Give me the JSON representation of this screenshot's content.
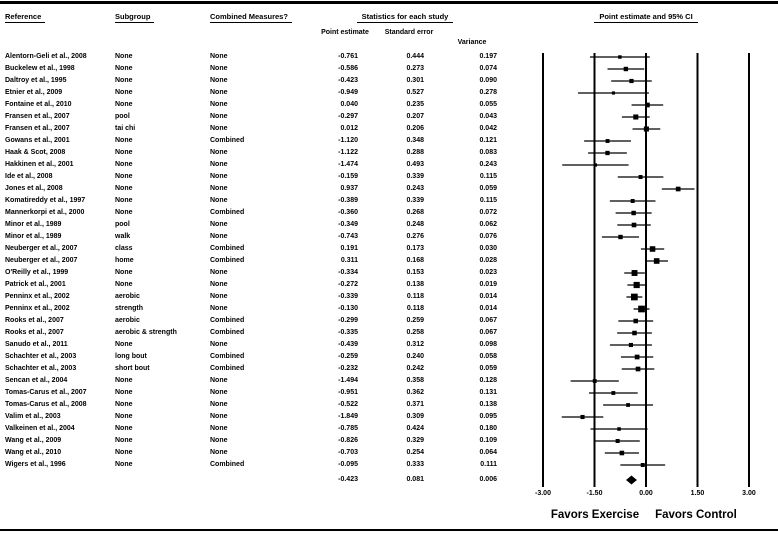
{
  "header": {
    "reference": "Reference",
    "subgroup": "Subgroup",
    "combined_measures": "Combined Measures?",
    "stats_group": "Statistics for each study",
    "plot_group": "Point estimate and 95% CI",
    "sub_point": "Point estimate",
    "sub_se": "Standard error",
    "sub_variance": "Variance"
  },
  "footer": {
    "favors_left": "Favors Exercise",
    "favors_right": "Favors Control"
  },
  "chart_data": {
    "type": "forest",
    "title": "Point estimate and 95% CI",
    "xlim": [
      -3,
      3
    ],
    "x_ticks": [
      -3,
      -1.5,
      0,
      1.5,
      3
    ],
    "x_tick_labels": [
      "-3.00",
      "-1.50",
      "0.00",
      "1.50",
      "3.00"
    ],
    "ci_level": 0.95,
    "grid": "vertical line at every x tick",
    "marker": "square sized by weight, whiskers = 95% CI, summary = diamond",
    "studies": [
      {
        "reference": "Alentorn-Geli et al., 2008",
        "subgroup": "None",
        "combined": "None",
        "point": -0.761,
        "se": 0.444,
        "variance": 0.197
      },
      {
        "reference": "Buckelew et al., 1998",
        "subgroup": "None",
        "combined": "None",
        "point": -0.586,
        "se": 0.273,
        "variance": 0.074
      },
      {
        "reference": "Daltroy et al., 1995",
        "subgroup": "None",
        "combined": "None",
        "point": -0.423,
        "se": 0.301,
        "variance": 0.09
      },
      {
        "reference": "Etnier et al., 2009",
        "subgroup": "None",
        "combined": "None",
        "point": -0.949,
        "se": 0.527,
        "variance": 0.278
      },
      {
        "reference": "Fontaine et al., 2010",
        "subgroup": "None",
        "combined": "None",
        "point": 0.04,
        "se": 0.235,
        "variance": 0.055
      },
      {
        "reference": "Fransen et al., 2007",
        "subgroup": "pool",
        "combined": "None",
        "point": -0.297,
        "se": 0.207,
        "variance": 0.043
      },
      {
        "reference": "Fransen et al., 2007",
        "subgroup": "tai chi",
        "combined": "None",
        "point": 0.012,
        "se": 0.206,
        "variance": 0.042
      },
      {
        "reference": "Gowans et al., 2001",
        "subgroup": "None",
        "combined": "Combined",
        "point": -1.12,
        "se": 0.348,
        "variance": 0.121
      },
      {
        "reference": "Haak & Scot, 2008",
        "subgroup": "None",
        "combined": "None",
        "point": -1.122,
        "se": 0.288,
        "variance": 0.083
      },
      {
        "reference": "Hakkinen et al., 2001",
        "subgroup": "None",
        "combined": "None",
        "point": -1.474,
        "se": 0.493,
        "variance": 0.243
      },
      {
        "reference": "Ide et al., 2008",
        "subgroup": "None",
        "combined": "None",
        "point": -0.159,
        "se": 0.339,
        "variance": 0.115
      },
      {
        "reference": "Jones et al., 2008",
        "subgroup": "None",
        "combined": "None",
        "point": 0.937,
        "se": 0.243,
        "variance": 0.059
      },
      {
        "reference": "Komatireddy et al., 1997",
        "subgroup": "None",
        "combined": "None",
        "point": -0.389,
        "se": 0.339,
        "variance": 0.115
      },
      {
        "reference": "Mannerkorpi et al., 2000",
        "subgroup": "None",
        "combined": "Combined",
        "point": -0.36,
        "se": 0.268,
        "variance": 0.072
      },
      {
        "reference": "Minor et al., 1989",
        "subgroup": "pool",
        "combined": "None",
        "point": -0.349,
        "se": 0.248,
        "variance": 0.062
      },
      {
        "reference": "Minor et al., 1989",
        "subgroup": "walk",
        "combined": "None",
        "point": -0.743,
        "se": 0.276,
        "variance": 0.076
      },
      {
        "reference": "Neuberger et al., 2007",
        "subgroup": "class",
        "combined": "Combined",
        "point": 0.191,
        "se": 0.173,
        "variance": 0.03
      },
      {
        "reference": "Neuberger et al., 2007",
        "subgroup": "home",
        "combined": "Combined",
        "point": 0.311,
        "se": 0.168,
        "variance": 0.028
      },
      {
        "reference": "O'Reilly et al., 1999",
        "subgroup": "None",
        "combined": "None",
        "point": -0.334,
        "se": 0.153,
        "variance": 0.023
      },
      {
        "reference": "Patrick et al., 2001",
        "subgroup": "None",
        "combined": "None",
        "point": -0.272,
        "se": 0.138,
        "variance": 0.019
      },
      {
        "reference": "Penninx et al., 2002",
        "subgroup": "aerobic",
        "combined": "None",
        "point": -0.339,
        "se": 0.118,
        "variance": 0.014
      },
      {
        "reference": "Penninx et al., 2002",
        "subgroup": "strength",
        "combined": "None",
        "point": -0.13,
        "se": 0.118,
        "variance": 0.014
      },
      {
        "reference": "Rooks et al., 2007",
        "subgroup": "aerobic",
        "combined": "Combined",
        "point": -0.299,
        "se": 0.259,
        "variance": 0.067
      },
      {
        "reference": "Rooks et al., 2007",
        "subgroup": "aerobic & strength",
        "combined": "Combined",
        "point": -0.335,
        "se": 0.258,
        "variance": 0.067
      },
      {
        "reference": "Sanudo et al., 2011",
        "subgroup": "None",
        "combined": "None",
        "point": -0.439,
        "se": 0.312,
        "variance": 0.098
      },
      {
        "reference": "Schachter et al., 2003",
        "subgroup": "long bout",
        "combined": "Combined",
        "point": -0.259,
        "se": 0.24,
        "variance": 0.058
      },
      {
        "reference": "Schachter et al., 2003",
        "subgroup": "short bout",
        "combined": "Combined",
        "point": -0.232,
        "se": 0.242,
        "variance": 0.059
      },
      {
        "reference": "Sencan et al., 2004",
        "subgroup": "None",
        "combined": "None",
        "point": -1.494,
        "se": 0.358,
        "variance": 0.128
      },
      {
        "reference": "Tomas-Carus et al., 2007",
        "subgroup": "None",
        "combined": "None",
        "point": -0.951,
        "se": 0.362,
        "variance": 0.131
      },
      {
        "reference": "Tomas-Carus et al., 2008",
        "subgroup": "None",
        "combined": "None",
        "point": -0.522,
        "se": 0.371,
        "variance": 0.138
      },
      {
        "reference": "Valim et al., 2003",
        "subgroup": "None",
        "combined": "None",
        "point": -1.849,
        "se": 0.309,
        "variance": 0.095
      },
      {
        "reference": "Valkeinen et al., 2004",
        "subgroup": "None",
        "combined": "None",
        "point": -0.785,
        "se": 0.424,
        "variance": 0.18
      },
      {
        "reference": "Wang et al., 2009",
        "subgroup": "None",
        "combined": "None",
        "point": -0.826,
        "se": 0.329,
        "variance": 0.109
      },
      {
        "reference": "Wang et al., 2010",
        "subgroup": "None",
        "combined": "None",
        "point": -0.703,
        "se": 0.254,
        "variance": 0.064
      },
      {
        "reference": "Wigers et al., 1996",
        "subgroup": "None",
        "combined": "Combined",
        "point": -0.095,
        "se": 0.333,
        "variance": 0.111
      }
    ],
    "summary": {
      "point": -0.423,
      "se": 0.081,
      "variance": 0.006
    }
  }
}
